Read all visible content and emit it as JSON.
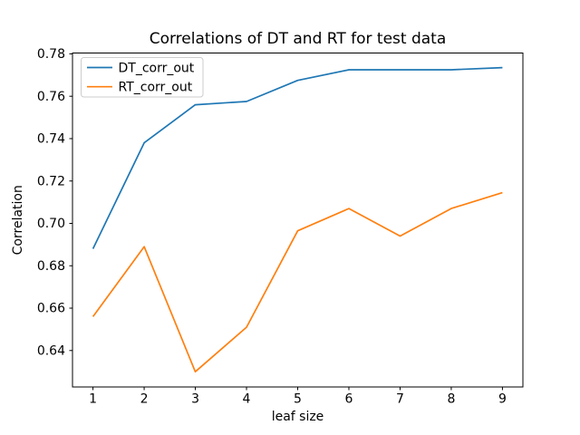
{
  "chart_data": {
    "type": "line",
    "title": "Correlations of DT and RT for test data",
    "xlabel": "leaf size",
    "ylabel": "Correlation",
    "x": [
      1,
      2,
      3,
      4,
      5,
      6,
      7,
      8,
      9
    ],
    "series": [
      {
        "name": "DT_corr_out",
        "color": "#1f77b4",
        "values": [
          0.688,
          0.738,
          0.756,
          0.7575,
          0.7675,
          0.7725,
          0.7725,
          0.7725,
          0.7735
        ]
      },
      {
        "name": "RT_corr_out",
        "color": "#ff7f0e",
        "values": [
          0.656,
          0.689,
          0.63,
          0.651,
          0.6965,
          0.707,
          0.694,
          0.707,
          0.7145
        ]
      }
    ],
    "xlim": [
      0.6,
      9.4
    ],
    "ylim": [
      0.6228,
      0.7804
    ],
    "xticks": [
      1,
      2,
      3,
      4,
      5,
      6,
      7,
      8,
      9
    ],
    "yticks": [
      0.64,
      0.66,
      0.68,
      0.7,
      0.72,
      0.74,
      0.76,
      0.78
    ],
    "grid": false,
    "marker": "none",
    "line_width": 1.7,
    "legend": {
      "position": "upper left",
      "entries": [
        "DT_corr_out",
        "RT_corr_out"
      ],
      "border_color": "#cccccc",
      "background": "#ffffff"
    },
    "colors": {
      "axes_frame": "#000000",
      "tick": "#000000",
      "text": "#000000",
      "plot_background": "#ffffff"
    }
  }
}
